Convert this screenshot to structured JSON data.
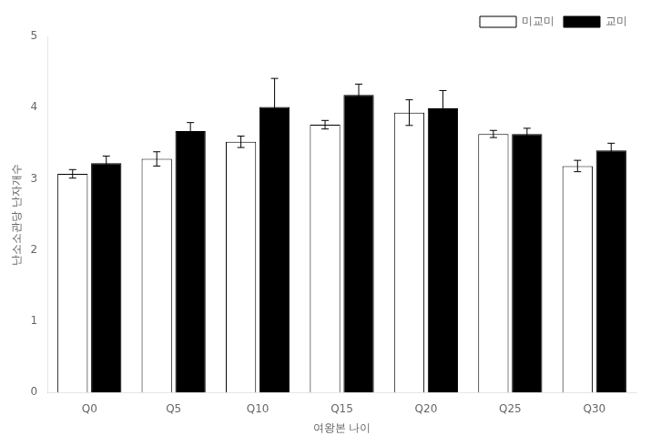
{
  "chart_data": {
    "type": "bar",
    "categories": [
      "Q0",
      "Q5",
      "Q10",
      "Q15",
      "Q20",
      "Q25",
      "Q30"
    ],
    "series": [
      {
        "name": "미교미",
        "color": "white",
        "values": [
          3.07,
          3.28,
          3.52,
          3.76,
          3.93,
          3.63,
          3.18
        ],
        "errors": [
          0.06,
          0.1,
          0.08,
          0.06,
          0.18,
          0.05,
          0.08
        ]
      },
      {
        "name": "교미",
        "color": "black",
        "values": [
          3.22,
          3.67,
          4.01,
          4.18,
          3.99,
          3.63,
          3.4
        ],
        "errors": [
          0.1,
          0.12,
          0.4,
          0.15,
          0.25,
          0.08,
          0.1
        ]
      }
    ],
    "xlabel": "여왕본 나이",
    "ylabel": "난소소관당 난자개수",
    "ylim": [
      0,
      5
    ],
    "yticks": [
      0,
      1,
      2,
      3,
      4,
      5
    ],
    "grid": false,
    "legend": "upper right"
  }
}
